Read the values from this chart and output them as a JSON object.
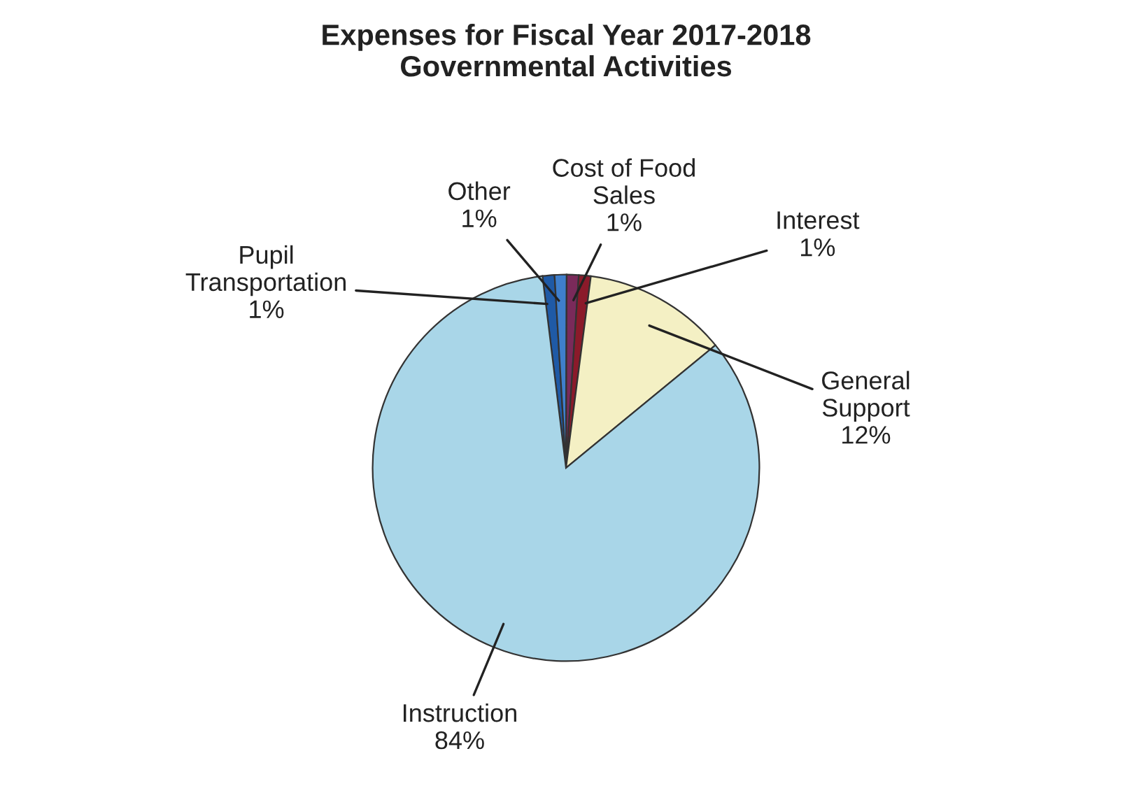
{
  "chart_data": {
    "type": "pie",
    "title": "Expenses for Fiscal Year 2017-2018\nGovernmental Activities",
    "categories": [
      "Pupil\nTransportation",
      "Other",
      "Cost of Food\nSales",
      "Interest",
      "General\nSupport",
      "Instruction"
    ],
    "values": [
      1,
      1,
      1,
      1,
      12,
      84
    ],
    "value_labels": [
      "1%",
      "1%",
      "1%",
      "1%",
      "12%",
      "84%"
    ],
    "colors": [
      "#1f5aa6",
      "#3f7fcc",
      "#7a2a5a",
      "#8b1a2a",
      "#f4f0c4",
      "#a9d6e8"
    ],
    "legend": false
  }
}
